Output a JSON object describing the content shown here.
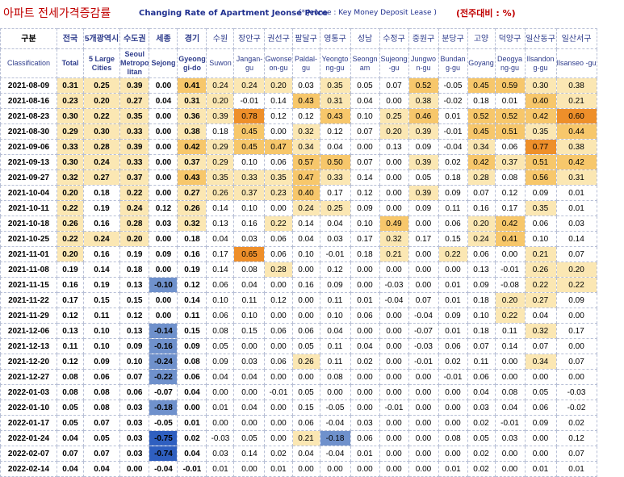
{
  "title": {
    "korean": "아파트 전세가격증감률",
    "english": "Changing Rate of Apartment Jeonse Price",
    "note": "(* Jeonse : Key Money Deposit Lease )",
    "unit": "(전주대비 : %)"
  },
  "chart_data": {
    "type": "table",
    "row_header": {
      "ko": "구분",
      "en": "Classification"
    },
    "columns": [
      {
        "ko": "전국",
        "en": "Total"
      },
      {
        "ko": "5개광역시",
        "en": "5 Large Cities"
      },
      {
        "ko": "수도권",
        "en": "Seoul Metropo litan"
      },
      {
        "ko": "세종",
        "en": "Sejong"
      },
      {
        "ko": "경기",
        "en": "Gyeong gi-do"
      },
      {
        "ko": "수원",
        "en": "Suwon"
      },
      {
        "ko": "장안구",
        "en": "Jangan-gu"
      },
      {
        "ko": "권선구",
        "en": "Gwonse on-gu"
      },
      {
        "ko": "팔달구",
        "en": "Paldal-gu"
      },
      {
        "ko": "영통구",
        "en": "Yeongto ng-gu"
      },
      {
        "ko": "성남",
        "en": "Seongn am"
      },
      {
        "ko": "수정구",
        "en": "Sujeong -gu"
      },
      {
        "ko": "중원구",
        "en": "Jungwo n-gu"
      },
      {
        "ko": "분당구",
        "en": "Bundan g-gu"
      },
      {
        "ko": "고양",
        "en": "Goyang"
      },
      {
        "ko": "덕양구",
        "en": "Deogya ng-gu"
      },
      {
        "ko": "일산동구",
        "en": "Ilsandon g-gu"
      },
      {
        "ko": "일산서구",
        "en": "Ilsanseo -gu"
      }
    ],
    "rows": [
      {
        "date": "2021-08-09",
        "values": [
          "0.31",
          "0.25",
          "0.39",
          "0.00",
          "0.41",
          "0.24",
          "0.24",
          "0.20",
          "0.03",
          "0.35",
          "0.05",
          "0.07",
          "0.52",
          "-0.05",
          "0.45",
          "0.59",
          "0.30",
          "0.38"
        ]
      },
      {
        "date": "2021-08-16",
        "values": [
          "0.23",
          "0.20",
          "0.27",
          "0.04",
          "0.31",
          "0.20",
          "-0.01",
          "0.14",
          "0.43",
          "0.31",
          "0.04",
          "0.00",
          "0.38",
          "-0.02",
          "0.18",
          "0.01",
          "0.40",
          "0.21"
        ]
      },
      {
        "date": "2021-08-23",
        "values": [
          "0.30",
          "0.22",
          "0.35",
          "0.00",
          "0.36",
          "0.39",
          "0.78",
          "0.12",
          "0.12",
          "0.43",
          "0.10",
          "0.25",
          "0.46",
          "0.01",
          "0.52",
          "0.52",
          "0.42",
          "0.60"
        ]
      },
      {
        "date": "2021-08-30",
        "values": [
          "0.29",
          "0.30",
          "0.33",
          "0.00",
          "0.38",
          "0.18",
          "0.45",
          "0.00",
          "0.32",
          "0.12",
          "0.07",
          "0.20",
          "0.39",
          "-0.01",
          "0.45",
          "0.51",
          "0.35",
          "0.44"
        ]
      },
      {
        "date": "2021-09-06",
        "values": [
          "0.33",
          "0.28",
          "0.39",
          "0.00",
          "0.42",
          "0.29",
          "0.45",
          "0.47",
          "0.34",
          "0.04",
          "0.00",
          "0.13",
          "0.09",
          "-0.04",
          "0.34",
          "0.06",
          "0.77",
          "0.38"
        ]
      },
      {
        "date": "2021-09-13",
        "values": [
          "0.30",
          "0.24",
          "0.33",
          "0.00",
          "0.37",
          "0.29",
          "0.10",
          "0.06",
          "0.57",
          "0.50",
          "0.07",
          "0.00",
          "0.39",
          "0.02",
          "0.42",
          "0.37",
          "0.51",
          "0.42"
        ]
      },
      {
        "date": "2021-09-27",
        "values": [
          "0.32",
          "0.27",
          "0.37",
          "0.00",
          "0.43",
          "0.35",
          "0.33",
          "0.35",
          "0.47",
          "0.33",
          "0.14",
          "0.00",
          "0.05",
          "0.18",
          "0.28",
          "0.08",
          "0.56",
          "0.31"
        ]
      },
      {
        "date": "2021-10-04",
        "values": [
          "0.20",
          "0.18",
          "0.22",
          "0.00",
          "0.27",
          "0.26",
          "0.37",
          "0.23",
          "0.40",
          "0.17",
          "0.12",
          "0.00",
          "0.39",
          "0.09",
          "0.07",
          "0.12",
          "0.09",
          "0.01"
        ]
      },
      {
        "date": "2021-10-11",
        "values": [
          "0.22",
          "0.19",
          "0.24",
          "0.12",
          "0.26",
          "0.14",
          "0.10",
          "0.00",
          "0.24",
          "0.25",
          "0.09",
          "0.00",
          "0.09",
          "0.11",
          "0.16",
          "0.17",
          "0.35",
          "0.01"
        ]
      },
      {
        "date": "2021-10-18",
        "values": [
          "0.26",
          "0.16",
          "0.28",
          "0.03",
          "0.32",
          "0.13",
          "0.16",
          "0.22",
          "0.14",
          "0.04",
          "0.10",
          "0.49",
          "0.00",
          "0.06",
          "0.20",
          "0.42",
          "0.06",
          "0.03"
        ]
      },
      {
        "date": "2021-10-25",
        "values": [
          "0.22",
          "0.24",
          "0.20",
          "0.00",
          "0.18",
          "0.04",
          "0.03",
          "0.06",
          "0.04",
          "0.03",
          "0.17",
          "0.32",
          "0.17",
          "0.15",
          "0.24",
          "0.41",
          "0.10",
          "0.14"
        ]
      },
      {
        "date": "2021-11-01",
        "values": [
          "0.20",
          "0.16",
          "0.19",
          "0.09",
          "0.16",
          "0.17",
          "0.65",
          "0.06",
          "0.10",
          "-0.01",
          "0.18",
          "0.21",
          "0.00",
          "0.22",
          "0.06",
          "0.00",
          "0.21",
          "0.07"
        ]
      },
      {
        "date": "2021-11-08",
        "values": [
          "0.19",
          "0.14",
          "0.18",
          "0.00",
          "0.19",
          "0.14",
          "0.08",
          "0.28",
          "0.00",
          "0.12",
          "0.00",
          "0.00",
          "0.00",
          "0.00",
          "0.13",
          "-0.01",
          "0.26",
          "0.20"
        ]
      },
      {
        "date": "2021-11-15",
        "values": [
          "0.16",
          "0.19",
          "0.13",
          "-0.10",
          "0.12",
          "0.06",
          "0.04",
          "0.00",
          "0.16",
          "0.09",
          "0.00",
          "-0.03",
          "0.00",
          "0.01",
          "0.09",
          "-0.08",
          "0.22",
          "0.22"
        ]
      },
      {
        "date": "2021-11-22",
        "values": [
          "0.17",
          "0.15",
          "0.15",
          "0.00",
          "0.14",
          "0.10",
          "0.11",
          "0.12",
          "0.00",
          "0.11",
          "0.01",
          "-0.04",
          "0.07",
          "0.01",
          "0.18",
          "0.20",
          "0.27",
          "0.09"
        ]
      },
      {
        "date": "2021-11-29",
        "values": [
          "0.12",
          "0.11",
          "0.12",
          "0.00",
          "0.11",
          "0.06",
          "0.10",
          "0.00",
          "0.00",
          "0.10",
          "0.06",
          "0.00",
          "-0.04",
          "0.09",
          "0.10",
          "0.22",
          "0.04",
          "0.00"
        ]
      },
      {
        "date": "2021-12-06",
        "values": [
          "0.13",
          "0.10",
          "0.13",
          "-0.14",
          "0.15",
          "0.08",
          "0.15",
          "0.06",
          "0.06",
          "0.04",
          "0.00",
          "0.00",
          "-0.07",
          "0.01",
          "0.18",
          "0.11",
          "0.32",
          "0.17"
        ]
      },
      {
        "date": "2021-12-13",
        "values": [
          "0.11",
          "0.10",
          "0.09",
          "-0.16",
          "0.09",
          "0.05",
          "0.00",
          "0.00",
          "0.05",
          "0.11",
          "0.04",
          "0.00",
          "-0.03",
          "0.06",
          "0.07",
          "0.14",
          "0.07",
          "0.00"
        ]
      },
      {
        "date": "2021-12-20",
        "values": [
          "0.12",
          "0.09",
          "0.10",
          "-0.24",
          "0.08",
          "0.09",
          "0.03",
          "0.06",
          "0.26",
          "0.11",
          "0.02",
          "0.00",
          "-0.01",
          "0.02",
          "0.11",
          "0.00",
          "0.34",
          "0.07"
        ]
      },
      {
        "date": "2021-12-27",
        "values": [
          "0.08",
          "0.06",
          "0.07",
          "-0.22",
          "0.06",
          "0.04",
          "0.04",
          "0.00",
          "0.00",
          "0.08",
          "0.00",
          "0.00",
          "0.00",
          "-0.01",
          "0.06",
          "0.00",
          "0.00",
          "0.00"
        ]
      },
      {
        "date": "2022-01-03",
        "values": [
          "0.08",
          "0.08",
          "0.06",
          "-0.07",
          "0.04",
          "0.00",
          "0.00",
          "-0.01",
          "0.05",
          "0.00",
          "0.00",
          "0.00",
          "0.00",
          "0.00",
          "0.04",
          "0.08",
          "0.05",
          "-0.03"
        ]
      },
      {
        "date": "2022-01-10",
        "values": [
          "0.05",
          "0.08",
          "0.03",
          "-0.18",
          "0.00",
          "0.01",
          "0.04",
          "0.00",
          "0.15",
          "-0.05",
          "0.00",
          "-0.01",
          "0.00",
          "0.00",
          "0.03",
          "0.04",
          "0.06",
          "-0.02"
        ]
      },
      {
        "date": "2022-01-17",
        "values": [
          "0.05",
          "0.07",
          "0.03",
          "-0.05",
          "0.01",
          "0.00",
          "0.00",
          "0.00",
          "0.06",
          "-0.04",
          "0.03",
          "0.00",
          "0.00",
          "0.00",
          "0.02",
          "-0.01",
          "0.09",
          "0.02"
        ]
      },
      {
        "date": "2022-01-24",
        "values": [
          "0.04",
          "0.05",
          "0.03",
          "-0.75",
          "0.02",
          "-0.03",
          "0.05",
          "0.00",
          "0.21",
          "-0.18",
          "0.06",
          "0.00",
          "0.00",
          "0.08",
          "0.05",
          "0.03",
          "0.00",
          "0.12"
        ]
      },
      {
        "date": "2022-02-07",
        "values": [
          "0.07",
          "0.07",
          "0.03",
          "-0.74",
          "0.04",
          "0.03",
          "0.14",
          "0.02",
          "0.04",
          "-0.04",
          "0.01",
          "0.00",
          "0.00",
          "0.00",
          "0.02",
          "0.00",
          "0.00",
          "0.07"
        ]
      },
      {
        "date": "2022-02-14",
        "values": [
          "0.04",
          "0.04",
          "0.00",
          "-0.04",
          "-0.01",
          "0.01",
          "0.00",
          "0.01",
          "0.00",
          "0.00",
          "0.00",
          "0.00",
          "0.00",
          "0.01",
          "0.02",
          "0.00",
          "0.01",
          "0.01"
        ]
      }
    ],
    "highlight_colors": {
      "neutral": "#ffffff",
      "light_positive": "#fbe7b3",
      "medium_positive": "#f7c76b",
      "strong_positive": "#ee8f2a",
      "light_negative": "#c9d6ee",
      "medium_negative": "#6f91cc",
      "strong_negative": "#2f5fc0"
    }
  }
}
